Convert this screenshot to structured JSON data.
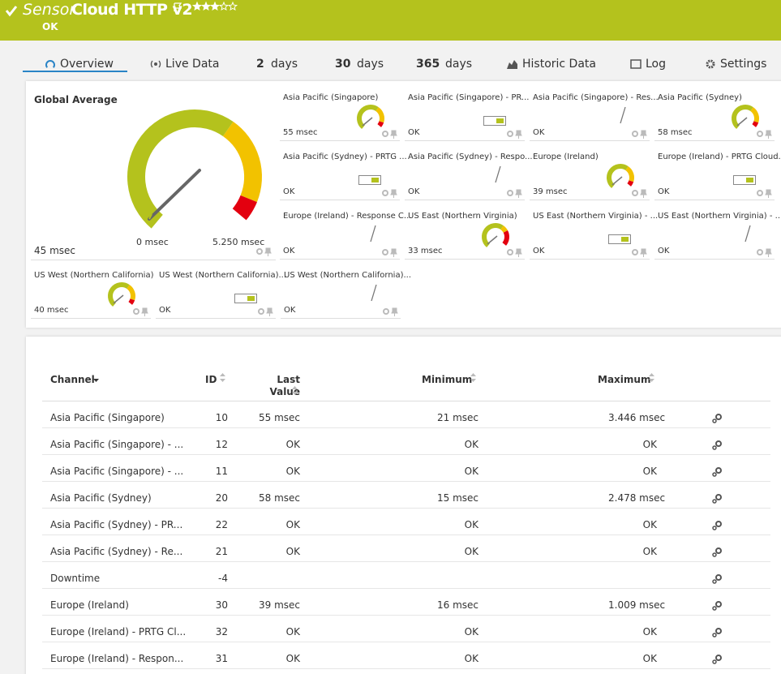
{
  "header": {
    "prefix": "Sensor",
    "title": "Cloud HTTP v2",
    "status": "OK"
  },
  "tabs": [
    {
      "label": "Overview"
    },
    {
      "label": "Live Data"
    },
    {
      "number": "2",
      "label": "days"
    },
    {
      "number": "30",
      "label": "days"
    },
    {
      "number": "365",
      "label": "days"
    },
    {
      "label": "Historic Data"
    },
    {
      "label": "Log"
    },
    {
      "label": "Settings"
    }
  ],
  "global_gauge": {
    "title": "Global Average",
    "value": "45 msec",
    "min": "0 msec",
    "max": "5.250 msec"
  },
  "tiles": [
    {
      "title": "Asia Pacific (Singapore)",
      "value": "55 msec",
      "widget": "gauge"
    },
    {
      "title": "Asia Pacific (Singapore) - PR...",
      "value": "OK",
      "widget": "toggle"
    },
    {
      "title": "Asia Pacific (Singapore) - Res...",
      "value": "OK",
      "widget": "line"
    },
    {
      "title": "Asia Pacific (Sydney)",
      "value": "58 msec",
      "widget": "gauge"
    },
    {
      "title": "Asia Pacific (Sydney) - PRTG ...",
      "value": "OK",
      "widget": "toggle"
    },
    {
      "title": "Asia Pacific (Sydney) - Respo...",
      "value": "OK",
      "widget": "line"
    },
    {
      "title": "Europe (Ireland)",
      "value": "39 msec",
      "widget": "gauge"
    },
    {
      "title": "Europe (Ireland) - PRTG Cloud...",
      "value": "OK",
      "widget": "toggle"
    },
    {
      "title": "Europe (Ireland) - Response C...",
      "value": "OK",
      "widget": "line"
    },
    {
      "title": "US East (Northern Virginia)",
      "value": "33 msec",
      "widget": "gauge"
    },
    {
      "title": "US East (Northern Virginia) - ...",
      "value": "OK",
      "widget": "toggle"
    },
    {
      "title": "US East (Northern Virginia) - ...",
      "value": "OK",
      "widget": "line"
    },
    {
      "title": "US West (Northern California)",
      "value": "40 msec",
      "widget": "gauge"
    },
    {
      "title": "US West (Northern California)...",
      "value": "OK",
      "widget": "toggle"
    },
    {
      "title": "US West (Northern California)...",
      "value": "OK",
      "widget": "line"
    }
  ],
  "table": {
    "columns": [
      "Channel",
      "ID",
      "Last Value",
      "Minimum",
      "Maximum"
    ],
    "rows": [
      [
        "Asia Pacific (Singapore)",
        10,
        "55 msec",
        "21 msec",
        "3.446 msec"
      ],
      [
        "Asia Pacific (Singapore) - ...",
        12,
        "OK",
        "OK",
        "OK"
      ],
      [
        "Asia Pacific (Singapore) - ...",
        11,
        "OK",
        "OK",
        "OK"
      ],
      [
        "Asia Pacific (Sydney)",
        20,
        "58 msec",
        "15 msec",
        "2.478 msec"
      ],
      [
        "Asia Pacific (Sydney) - PR...",
        22,
        "OK",
        "OK",
        "OK"
      ],
      [
        "Asia Pacific (Sydney) - Re...",
        21,
        "OK",
        "OK",
        "OK"
      ],
      [
        "Downtime",
        -4,
        null,
        null,
        null
      ],
      [
        "Europe (Ireland)",
        30,
        "39 msec",
        "16 msec",
        "1.009 msec"
      ],
      [
        "Europe (Ireland) - PRTG Cl...",
        32,
        "OK",
        "OK",
        "OK"
      ],
      [
        "Europe (Ireland) - Respon...",
        31,
        "OK",
        "OK",
        "OK"
      ]
    ]
  }
}
